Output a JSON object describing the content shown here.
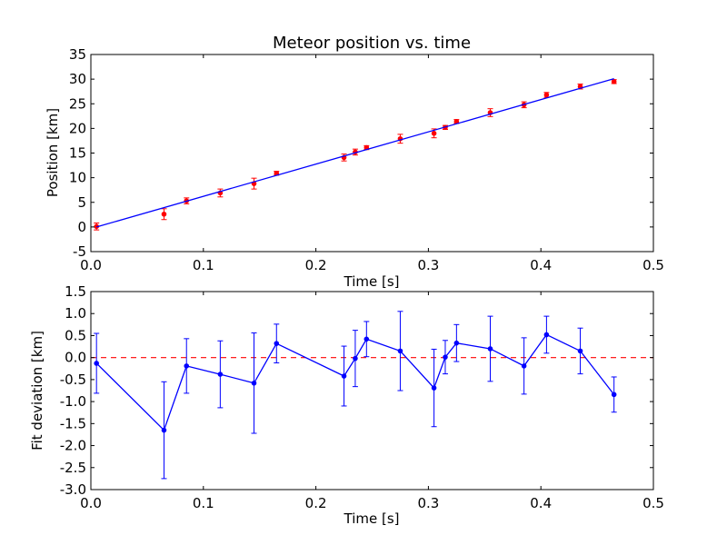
{
  "chart_data": [
    {
      "type": "scatter",
      "title": "Meteor position vs. time",
      "xlabel": "Time [s]",
      "ylabel": "Position [km]",
      "xlim": [
        0.0,
        0.5
      ],
      "ylim": [
        -5,
        35
      ],
      "xticks": [
        "0.0",
        "0.1",
        "0.2",
        "0.3",
        "0.4",
        "0.5"
      ],
      "yticks": [
        "-5",
        "0",
        "5",
        "10",
        "15",
        "20",
        "25",
        "30",
        "35"
      ],
      "grid": false,
      "series": [
        {
          "kind": "errorbar-points",
          "color": "#ff0000",
          "x": [
            0.005,
            0.065,
            0.085,
            0.115,
            0.145,
            0.165,
            0.225,
            0.235,
            0.245,
            0.275,
            0.305,
            0.315,
            0.325,
            0.355,
            0.385,
            0.405,
            0.435,
            0.465
          ],
          "y": [
            0.1,
            2.6,
            5.3,
            6.9,
            8.8,
            10.9,
            14.1,
            15.2,
            16.1,
            17.9,
            19.0,
            20.2,
            21.4,
            23.2,
            24.8,
            26.8,
            28.5,
            29.5
          ],
          "yerr": [
            0.7,
            1.1,
            0.6,
            0.8,
            1.1,
            0.4,
            0.7,
            0.6,
            0.4,
            0.9,
            0.9,
            0.4,
            0.4,
            0.8,
            0.6,
            0.5,
            0.5,
            0.4
          ]
        },
        {
          "kind": "fit-line",
          "color": "#0000ff",
          "x": [
            0.005,
            0.465
          ],
          "y": [
            0.0,
            30.1
          ]
        }
      ]
    },
    {
      "type": "line",
      "title": "",
      "xlabel": "Time [s]",
      "ylabel": "Fit deviation [km]",
      "xlim": [
        0.0,
        0.5
      ],
      "ylim": [
        -3.0,
        1.5
      ],
      "xticks": [
        "0.0",
        "0.1",
        "0.2",
        "0.3",
        "0.4",
        "0.5"
      ],
      "yticks": [
        "-3.0",
        "-2.5",
        "-2.0",
        "-1.5",
        "-1.0",
        "-0.5",
        "0.0",
        "0.5",
        "1.0",
        "1.5"
      ],
      "grid": false,
      "reference_line": {
        "y": 0.0,
        "color": "#ff0000",
        "style": "dashed"
      },
      "series": [
        {
          "kind": "errorbar-line",
          "color": "#0000ff",
          "x": [
            0.005,
            0.065,
            0.085,
            0.115,
            0.145,
            0.165,
            0.225,
            0.235,
            0.245,
            0.275,
            0.305,
            0.315,
            0.325,
            0.355,
            0.385,
            0.405,
            0.435,
            0.465
          ],
          "y": [
            -0.13,
            -1.65,
            -0.19,
            -0.38,
            -0.58,
            0.32,
            -0.42,
            -0.02,
            0.42,
            0.15,
            -0.69,
            0.01,
            0.33,
            0.2,
            -0.19,
            0.52,
            0.15,
            -0.84
          ],
          "yerr": [
            0.68,
            1.1,
            0.62,
            0.76,
            1.14,
            0.44,
            0.68,
            0.64,
            0.4,
            0.9,
            0.88,
            0.38,
            0.42,
            0.74,
            0.64,
            0.42,
            0.52,
            0.4
          ]
        }
      ]
    }
  ]
}
